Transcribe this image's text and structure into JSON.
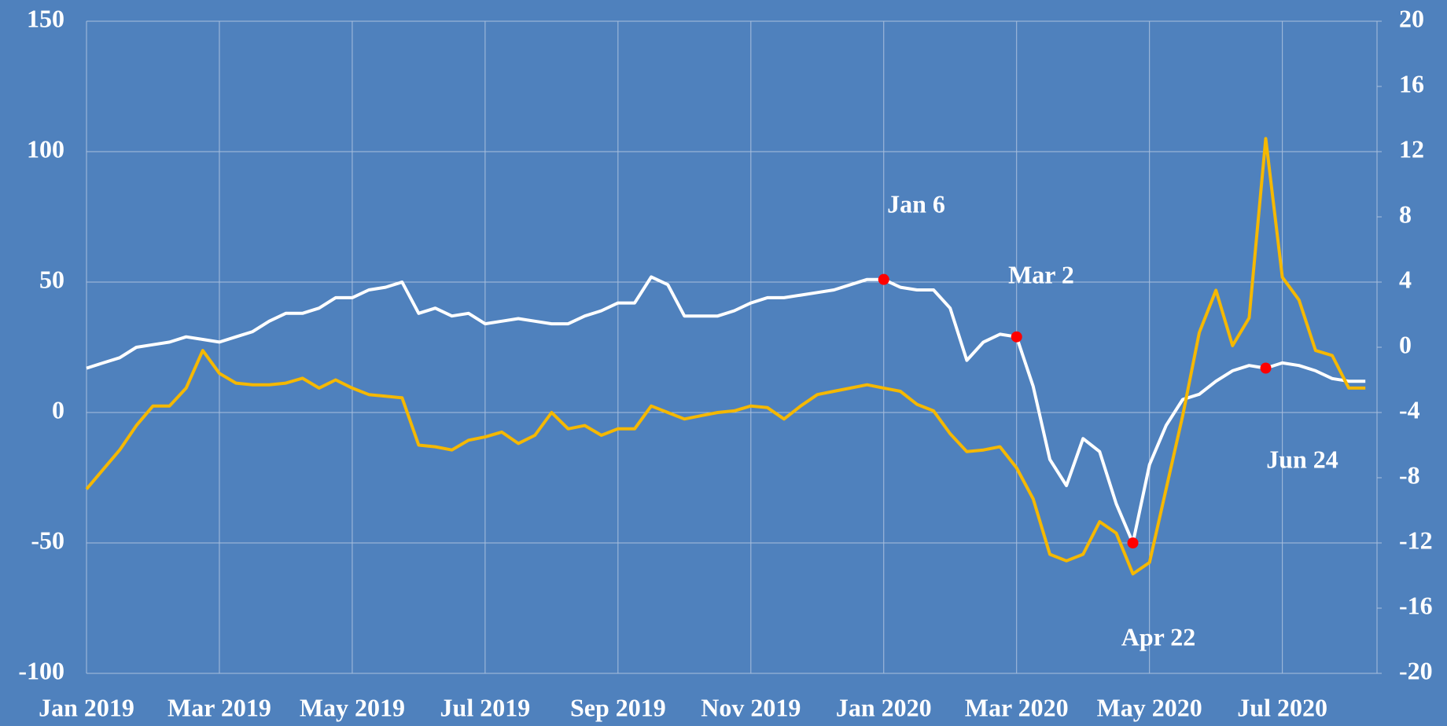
{
  "chart_data": {
    "type": "line",
    "categories": [
      "Jan 2019",
      null,
      null,
      null,
      null,
      null,
      null,
      null,
      "Mar 2019",
      null,
      null,
      null,
      null,
      null,
      null,
      null,
      "May 2019",
      null,
      null,
      null,
      null,
      null,
      null,
      null,
      "Jul 2019",
      null,
      null,
      null,
      null,
      null,
      null,
      null,
      "Sep 2019",
      null,
      null,
      null,
      null,
      null,
      null,
      null,
      "Nov 2019",
      null,
      null,
      null,
      null,
      null,
      null,
      null,
      "Jan 2020",
      null,
      null,
      null,
      null,
      null,
      null,
      null,
      "Mar 2020",
      null,
      null,
      null,
      null,
      null,
      null,
      null,
      "May 2020",
      null,
      null,
      null,
      null,
      null,
      null,
      null,
      "Jul 2020",
      null,
      null,
      null,
      null,
      null
    ],
    "series": [
      {
        "color": "#ffffff",
        "axis": "y",
        "values": [
          17,
          19,
          21,
          25,
          26,
          27,
          29,
          28,
          27,
          29,
          31,
          35,
          38,
          38,
          40,
          44,
          44,
          47,
          48,
          50,
          38,
          40,
          37,
          38,
          34,
          35,
          36,
          35,
          34,
          34,
          37,
          39,
          42,
          42,
          52,
          49,
          37,
          37,
          37,
          39,
          42,
          44,
          44,
          45,
          46,
          47,
          49,
          51,
          51,
          48,
          47,
          47,
          40,
          20,
          27,
          30,
          29,
          10,
          -18,
          -28,
          -10,
          -15,
          -35,
          -50,
          -20,
          -5,
          5,
          7,
          12,
          16,
          18,
          17,
          19,
          18,
          16,
          13,
          12,
          12
        ]
      },
      {
        "color": "#f5b800",
        "axis": "y2",
        "values": [
          -8.7,
          -7.5,
          -6.3,
          -4.8,
          -3.6,
          -3.6,
          -2.5,
          -0.2,
          -1.6,
          -2.2,
          -2.3,
          -2.3,
          -2.2,
          -1.9,
          -2.5,
          -2.0,
          -2.5,
          -2.9,
          -3.0,
          -3.1,
          -6.0,
          -6.1,
          -6.3,
          -5.7,
          -5.5,
          -5.2,
          -5.9,
          -5.4,
          -4.0,
          -5.0,
          -4.8,
          -5.4,
          -5.0,
          -5.0,
          -3.6,
          -4.0,
          -4.4,
          -4.2,
          -4.0,
          -3.9,
          -3.6,
          -3.7,
          -4.4,
          -3.6,
          -2.9,
          -2.7,
          -2.5,
          -2.3,
          -2.5,
          -2.7,
          -3.5,
          -3.9,
          -5.3,
          -6.4,
          -6.3,
          -6.1,
          -7.4,
          -9.3,
          -12.7,
          -13.1,
          -12.7,
          -10.7,
          -11.4,
          -13.9,
          -13.2,
          -8.7,
          -4.2,
          0.9,
          3.5,
          0.1,
          1.8,
          12.8,
          4.3,
          2.9,
          -0.2,
          -0.5,
          -2.5,
          -2.5
        ]
      }
    ],
    "ylim": [
      -100,
      150
    ],
    "yticks": [
      -100,
      -50,
      0,
      50,
      100,
      150
    ],
    "y2lim": [
      -20,
      20
    ],
    "y2ticks": [
      -20,
      -16,
      -12,
      -8,
      -4,
      0,
      4,
      8,
      12,
      16,
      20
    ],
    "grid": true,
    "annotations": [
      "Jan 6",
      "Mar 2",
      "Apr 22",
      "Jun 24"
    ],
    "marker_color": "#ff0000"
  }
}
